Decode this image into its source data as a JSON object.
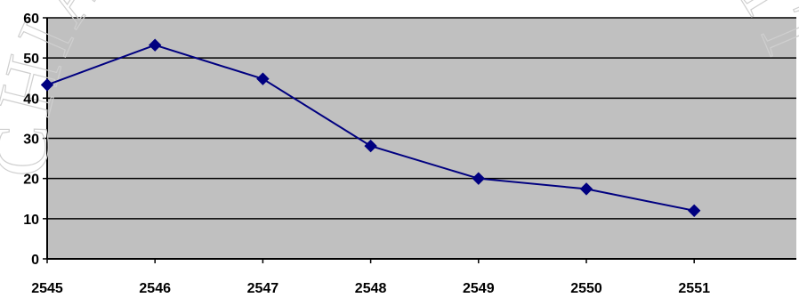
{
  "chart_data": {
    "type": "line",
    "x": [
      "2545",
      "2546",
      "2547",
      "2548",
      "2549",
      "2550",
      "2551"
    ],
    "series": [
      {
        "values": [
          43.3,
          53.2,
          44.8,
          28.1,
          20.0,
          17.4,
          12.0
        ]
      }
    ],
    "title": "",
    "xlabel": "",
    "ylabel": "",
    "ylim": [
      0,
      60
    ],
    "yticks": [
      0,
      10,
      20,
      30,
      40,
      50,
      60
    ],
    "grid": true,
    "legend": "none",
    "colors": {
      "plot_background": "#c0c0c0",
      "line": "#000080",
      "marker": "#000080",
      "gridline": "#000000"
    }
  },
  "watermark": {
    "text": "CHIANG MAI UNIVERSITY"
  }
}
